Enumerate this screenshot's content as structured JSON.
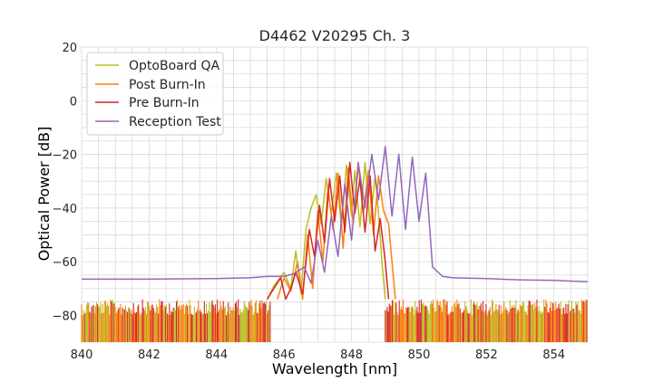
{
  "chart_data": {
    "type": "line",
    "title": "D4462 V20295 Ch. 3",
    "xlabel": "Wavelength [nm]",
    "ylabel": "Optical Power [dB]",
    "xlim": [
      840,
      855
    ],
    "ylim": [
      -90,
      20
    ],
    "xticks": [
      840,
      842,
      844,
      846,
      848,
      850,
      852,
      854
    ],
    "yticks": [
      -80,
      -60,
      -40,
      -20,
      0,
      20
    ],
    "xtick_labels": [
      "840",
      "842",
      "844",
      "846",
      "848",
      "850",
      "852",
      "854"
    ],
    "ytick_labels": [
      "−80",
      "−60",
      "−40",
      "−20",
      "0",
      "20"
    ],
    "grid": true,
    "legend_position": "top-left",
    "noise_floor": {
      "from_dB": -90,
      "to_dB": -74
    },
    "series": [
      {
        "name": "OptoBoard QA",
        "color": "#bcbd22",
        "x": [
          845.5,
          845.7,
          846.0,
          846.2,
          846.35,
          846.5,
          846.65,
          846.8,
          846.95,
          847.1,
          847.25,
          847.4,
          847.55,
          847.7,
          847.85,
          848.0,
          848.1,
          848.25,
          848.4,
          848.55,
          848.7,
          848.8,
          848.9,
          849.0
        ],
        "y": [
          -74,
          -69,
          -64,
          -70,
          -56,
          -72,
          -48,
          -40,
          -35,
          -46,
          -29,
          -42,
          -27,
          -47,
          -24,
          -43,
          -26,
          -47,
          -23,
          -46,
          -28,
          -42,
          -60,
          -74
        ]
      },
      {
        "name": "Post Burn-In",
        "color": "#ff7f0e",
        "x": [
          845.8,
          846.0,
          846.2,
          846.4,
          846.55,
          846.7,
          846.85,
          847.0,
          847.15,
          847.3,
          847.45,
          847.6,
          847.75,
          847.9,
          848.05,
          848.2,
          848.35,
          848.5,
          848.65,
          848.8,
          848.95,
          849.1,
          849.2,
          849.3
        ],
        "y": [
          -74,
          -66,
          -71,
          -60,
          -74,
          -50,
          -70,
          -41,
          -60,
          -32,
          -48,
          -27,
          -55,
          -25,
          -46,
          -24,
          -42,
          -26,
          -50,
          -28,
          -41,
          -46,
          -60,
          -74
        ]
      },
      {
        "name": "Pre Burn-In",
        "color": "#d62728",
        "x": [
          845.5,
          845.7,
          845.9,
          846.05,
          846.2,
          846.35,
          846.55,
          846.75,
          846.9,
          847.05,
          847.2,
          847.35,
          847.5,
          847.65,
          847.8,
          847.95,
          848.1,
          848.25,
          848.4,
          848.55,
          848.7,
          848.85,
          849.0,
          849.1
        ],
        "y": [
          -74,
          -70,
          -66,
          -74,
          -70,
          -64,
          -72,
          -48,
          -58,
          -39,
          -53,
          -29,
          -45,
          -28,
          -49,
          -23,
          -42,
          -29,
          -49,
          -28,
          -56,
          -44,
          -60,
          -74
        ]
      },
      {
        "name": "Reception Test",
        "color": "#9467bd",
        "x": [
          840.0,
          842.0,
          844.0,
          845.0,
          845.5,
          846.0,
          846.3,
          846.6,
          846.8,
          847.0,
          847.2,
          847.4,
          847.6,
          847.8,
          848.0,
          848.2,
          848.4,
          848.6,
          848.8,
          849.0,
          849.2,
          849.4,
          849.6,
          849.8,
          850.0,
          850.2,
          850.4,
          850.7,
          851.0,
          852.0,
          853.0,
          854.0,
          855.0
        ],
        "y": [
          -66.5,
          -66.5,
          -66.3,
          -66.0,
          -65.5,
          -65.5,
          -64.5,
          -62.0,
          -68.0,
          -52.0,
          -64.0,
          -43.0,
          -58.0,
          -31.0,
          -52.0,
          -23.0,
          -40.0,
          -20.0,
          -37.0,
          -17.0,
          -43.0,
          -20.0,
          -48.0,
          -21.0,
          -45.0,
          -27.0,
          -62.0,
          -65.5,
          -66.0,
          -66.3,
          -66.8,
          -67.0,
          -67.5
        ]
      }
    ]
  }
}
